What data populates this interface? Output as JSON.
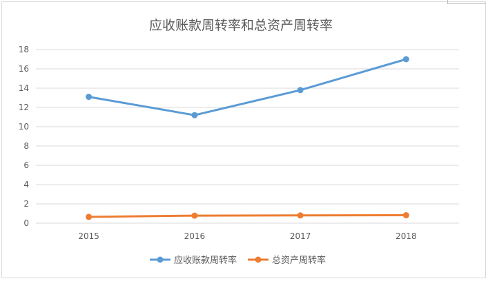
{
  "chart_data": {
    "type": "line",
    "title": "应收账款周转率和总资产周转率",
    "categories": [
      "2015",
      "2016",
      "2017",
      "2018"
    ],
    "ylim": [
      0,
      18
    ],
    "yticks": [
      0,
      2,
      4,
      6,
      8,
      10,
      12,
      14,
      16,
      18
    ],
    "grid": true,
    "legend_position": "bottom",
    "series": [
      {
        "name": "应收账款周转率",
        "color": "#5b9bd5",
        "values": [
          13.1,
          11.2,
          13.8,
          17.0
        ]
      },
      {
        "name": "总资产周转率",
        "color": "#ed7d31",
        "values": [
          0.65,
          0.78,
          0.8,
          0.82
        ]
      }
    ]
  }
}
